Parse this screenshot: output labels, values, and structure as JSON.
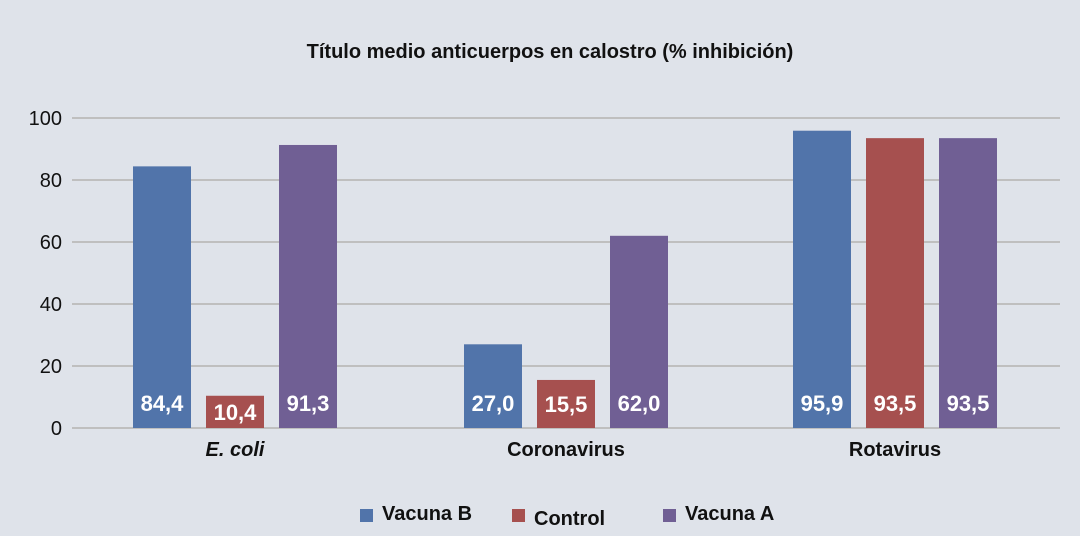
{
  "chart_data": {
    "type": "bar",
    "title": "Título medio anticuerpos en calostro (% inhibición)",
    "xlabel": "",
    "ylabel": "",
    "ylim": [
      0,
      100
    ],
    "yticks": [
      0,
      20,
      40,
      60,
      80,
      100
    ],
    "categories": [
      "E. coli",
      "Coronavirus",
      "Rotavirus"
    ],
    "category_italic": [
      true,
      false,
      false
    ],
    "grid": true,
    "legend_position": "bottom",
    "series": [
      {
        "name": "Vacuna B",
        "color": "#5174aa",
        "values": [
          84.4,
          27.0,
          95.9
        ],
        "labels": [
          "84,4",
          "27,0",
          "95,9"
        ]
      },
      {
        "name": "Control",
        "color": "#a6504f",
        "values": [
          10.4,
          15.5,
          93.5
        ],
        "labels": [
          "10,4",
          "15,5",
          "93,5"
        ]
      },
      {
        "name": "Vacuna A",
        "color": "#705f94",
        "values": [
          91.3,
          62.0,
          93.5
        ],
        "labels": [
          "91,3",
          "62,0",
          "93,5"
        ]
      }
    ]
  }
}
